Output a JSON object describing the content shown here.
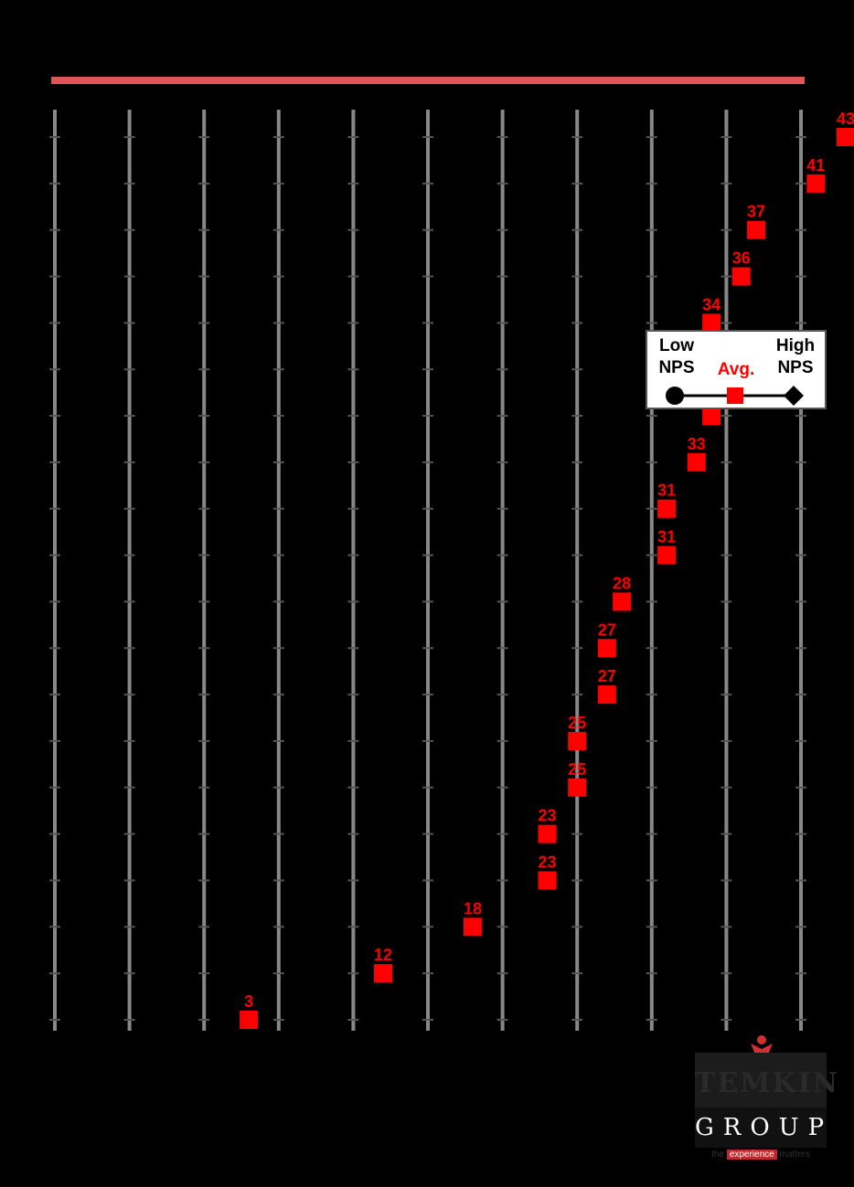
{
  "chart_data": {
    "type": "scatter",
    "title": "",
    "xlabel": "",
    "ylabel": "",
    "xlim": [
      -10,
      40
    ],
    "colors": {
      "avg": "#ff0000",
      "axis_bar": "#e05555",
      "gridline": "#888888"
    },
    "legend": {
      "placement": "right",
      "low_label": "Low NPS",
      "avg_label": "Avg.",
      "high_label": "High NPS"
    },
    "series": [
      {
        "name": "Avg.",
        "values": [
          43,
          41,
          37,
          36,
          34,
          34,
          34,
          33,
          31,
          31,
          28,
          27,
          27,
          25,
          25,
          23,
          23,
          18,
          12,
          3
        ]
      }
    ]
  },
  "logo": {
    "brand": "TEMKIN",
    "group": "GROUP",
    "tag_left": "the",
    "tag_mid": "experience",
    "tag_right": "matters"
  }
}
